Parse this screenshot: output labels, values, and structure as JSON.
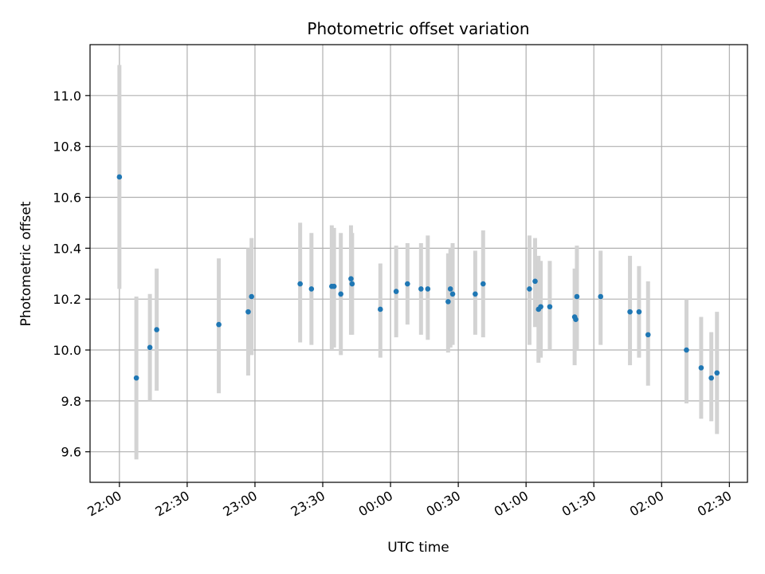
{
  "chart_data": {
    "type": "scatter",
    "title": "Photometric offset variation",
    "xlabel": "UTC time",
    "ylabel": "Photometric offset",
    "x_unit": "minutes from 22:00 UTC",
    "x_ticks": [
      "22:00",
      "22:30",
      "23:00",
      "23:30",
      "00:00",
      "00:30",
      "01:00",
      "01:30",
      "02:00",
      "02:30"
    ],
    "x_tick_values": [
      0,
      30,
      60,
      90,
      120,
      150,
      180,
      210,
      240,
      270
    ],
    "xlim": [
      -13,
      278
    ],
    "ylim": [
      9.48,
      11.2
    ],
    "y_ticks": [
      "9.6",
      "9.8",
      "10.0",
      "10.2",
      "10.4",
      "10.6",
      "10.8",
      "11.0"
    ],
    "y_tick_values": [
      9.6,
      9.8,
      10.0,
      10.2,
      10.4,
      10.6,
      10.8,
      11.0
    ],
    "grid": true,
    "colors": {
      "points": "#1f77b4",
      "error_bars": "#d3d3d3",
      "grid": "#b0b0b0"
    },
    "points": [
      {
        "t": 0.0,
        "y": 10.68,
        "lo": 10.24,
        "hi": 11.12
      },
      {
        "t": 7.5,
        "y": 9.89,
        "lo": 9.57,
        "hi": 10.21
      },
      {
        "t": 13.5,
        "y": 10.01,
        "lo": 9.8,
        "hi": 10.22
      },
      {
        "t": 16.5,
        "y": 10.08,
        "lo": 9.84,
        "hi": 10.32
      },
      {
        "t": 44.0,
        "y": 10.1,
        "lo": 9.83,
        "hi": 10.36
      },
      {
        "t": 57.0,
        "y": 10.15,
        "lo": 9.9,
        "hi": 10.4
      },
      {
        "t": 58.5,
        "y": 10.21,
        "lo": 9.98,
        "hi": 10.44
      },
      {
        "t": 80.0,
        "y": 10.26,
        "lo": 10.03,
        "hi": 10.5
      },
      {
        "t": 85.0,
        "y": 10.24,
        "lo": 10.02,
        "hi": 10.46
      },
      {
        "t": 94.0,
        "y": 10.25,
        "lo": 10.0,
        "hi": 10.49
      },
      {
        "t": 95.0,
        "y": 10.25,
        "lo": 10.01,
        "hi": 10.48
      },
      {
        "t": 98.0,
        "y": 10.22,
        "lo": 9.98,
        "hi": 10.46
      },
      {
        "t": 102.5,
        "y": 10.28,
        "lo": 10.06,
        "hi": 10.49
      },
      {
        "t": 103.0,
        "y": 10.26,
        "lo": 10.06,
        "hi": 10.46
      },
      {
        "t": 115.5,
        "y": 10.16,
        "lo": 9.97,
        "hi": 10.34
      },
      {
        "t": 122.5,
        "y": 10.23,
        "lo": 10.05,
        "hi": 10.41
      },
      {
        "t": 127.5,
        "y": 10.26,
        "lo": 10.1,
        "hi": 10.42
      },
      {
        "t": 133.5,
        "y": 10.24,
        "lo": 10.06,
        "hi": 10.42
      },
      {
        "t": 136.5,
        "y": 10.24,
        "lo": 10.04,
        "hi": 10.45
      },
      {
        "t": 145.5,
        "y": 10.19,
        "lo": 9.99,
        "hi": 10.38
      },
      {
        "t": 146.5,
        "y": 10.24,
        "lo": 10.01,
        "hi": 10.4
      },
      {
        "t": 147.5,
        "y": 10.22,
        "lo": 10.02,
        "hi": 10.42
      },
      {
        "t": 157.5,
        "y": 10.22,
        "lo": 10.06,
        "hi": 10.39
      },
      {
        "t": 161.0,
        "y": 10.26,
        "lo": 10.05,
        "hi": 10.47
      },
      {
        "t": 181.5,
        "y": 10.24,
        "lo": 10.02,
        "hi": 10.45
      },
      {
        "t": 184.0,
        "y": 10.27,
        "lo": 10.09,
        "hi": 10.44
      },
      {
        "t": 185.5,
        "y": 10.16,
        "lo": 9.95,
        "hi": 10.37
      },
      {
        "t": 186.5,
        "y": 10.17,
        "lo": 9.97,
        "hi": 10.35
      },
      {
        "t": 190.5,
        "y": 10.17,
        "lo": 10.0,
        "hi": 10.35
      },
      {
        "t": 201.5,
        "y": 10.13,
        "lo": 9.94,
        "hi": 10.32
      },
      {
        "t": 202.0,
        "y": 10.12,
        "lo": 10.01,
        "hi": 10.29
      },
      {
        "t": 202.5,
        "y": 10.21,
        "lo": 10.0,
        "hi": 10.41
      },
      {
        "t": 213.0,
        "y": 10.21,
        "lo": 10.02,
        "hi": 10.39
      },
      {
        "t": 226.0,
        "y": 10.15,
        "lo": 9.94,
        "hi": 10.37
      },
      {
        "t": 230.0,
        "y": 10.15,
        "lo": 9.97,
        "hi": 10.33
      },
      {
        "t": 234.0,
        "y": 10.06,
        "lo": 9.86,
        "hi": 10.27
      },
      {
        "t": 251.0,
        "y": 10.0,
        "lo": 9.79,
        "hi": 10.2
      },
      {
        "t": 257.5,
        "y": 9.93,
        "lo": 9.73,
        "hi": 10.13
      },
      {
        "t": 262.0,
        "y": 9.89,
        "lo": 9.72,
        "hi": 10.07
      },
      {
        "t": 264.5,
        "y": 9.91,
        "lo": 9.67,
        "hi": 10.15
      }
    ]
  }
}
